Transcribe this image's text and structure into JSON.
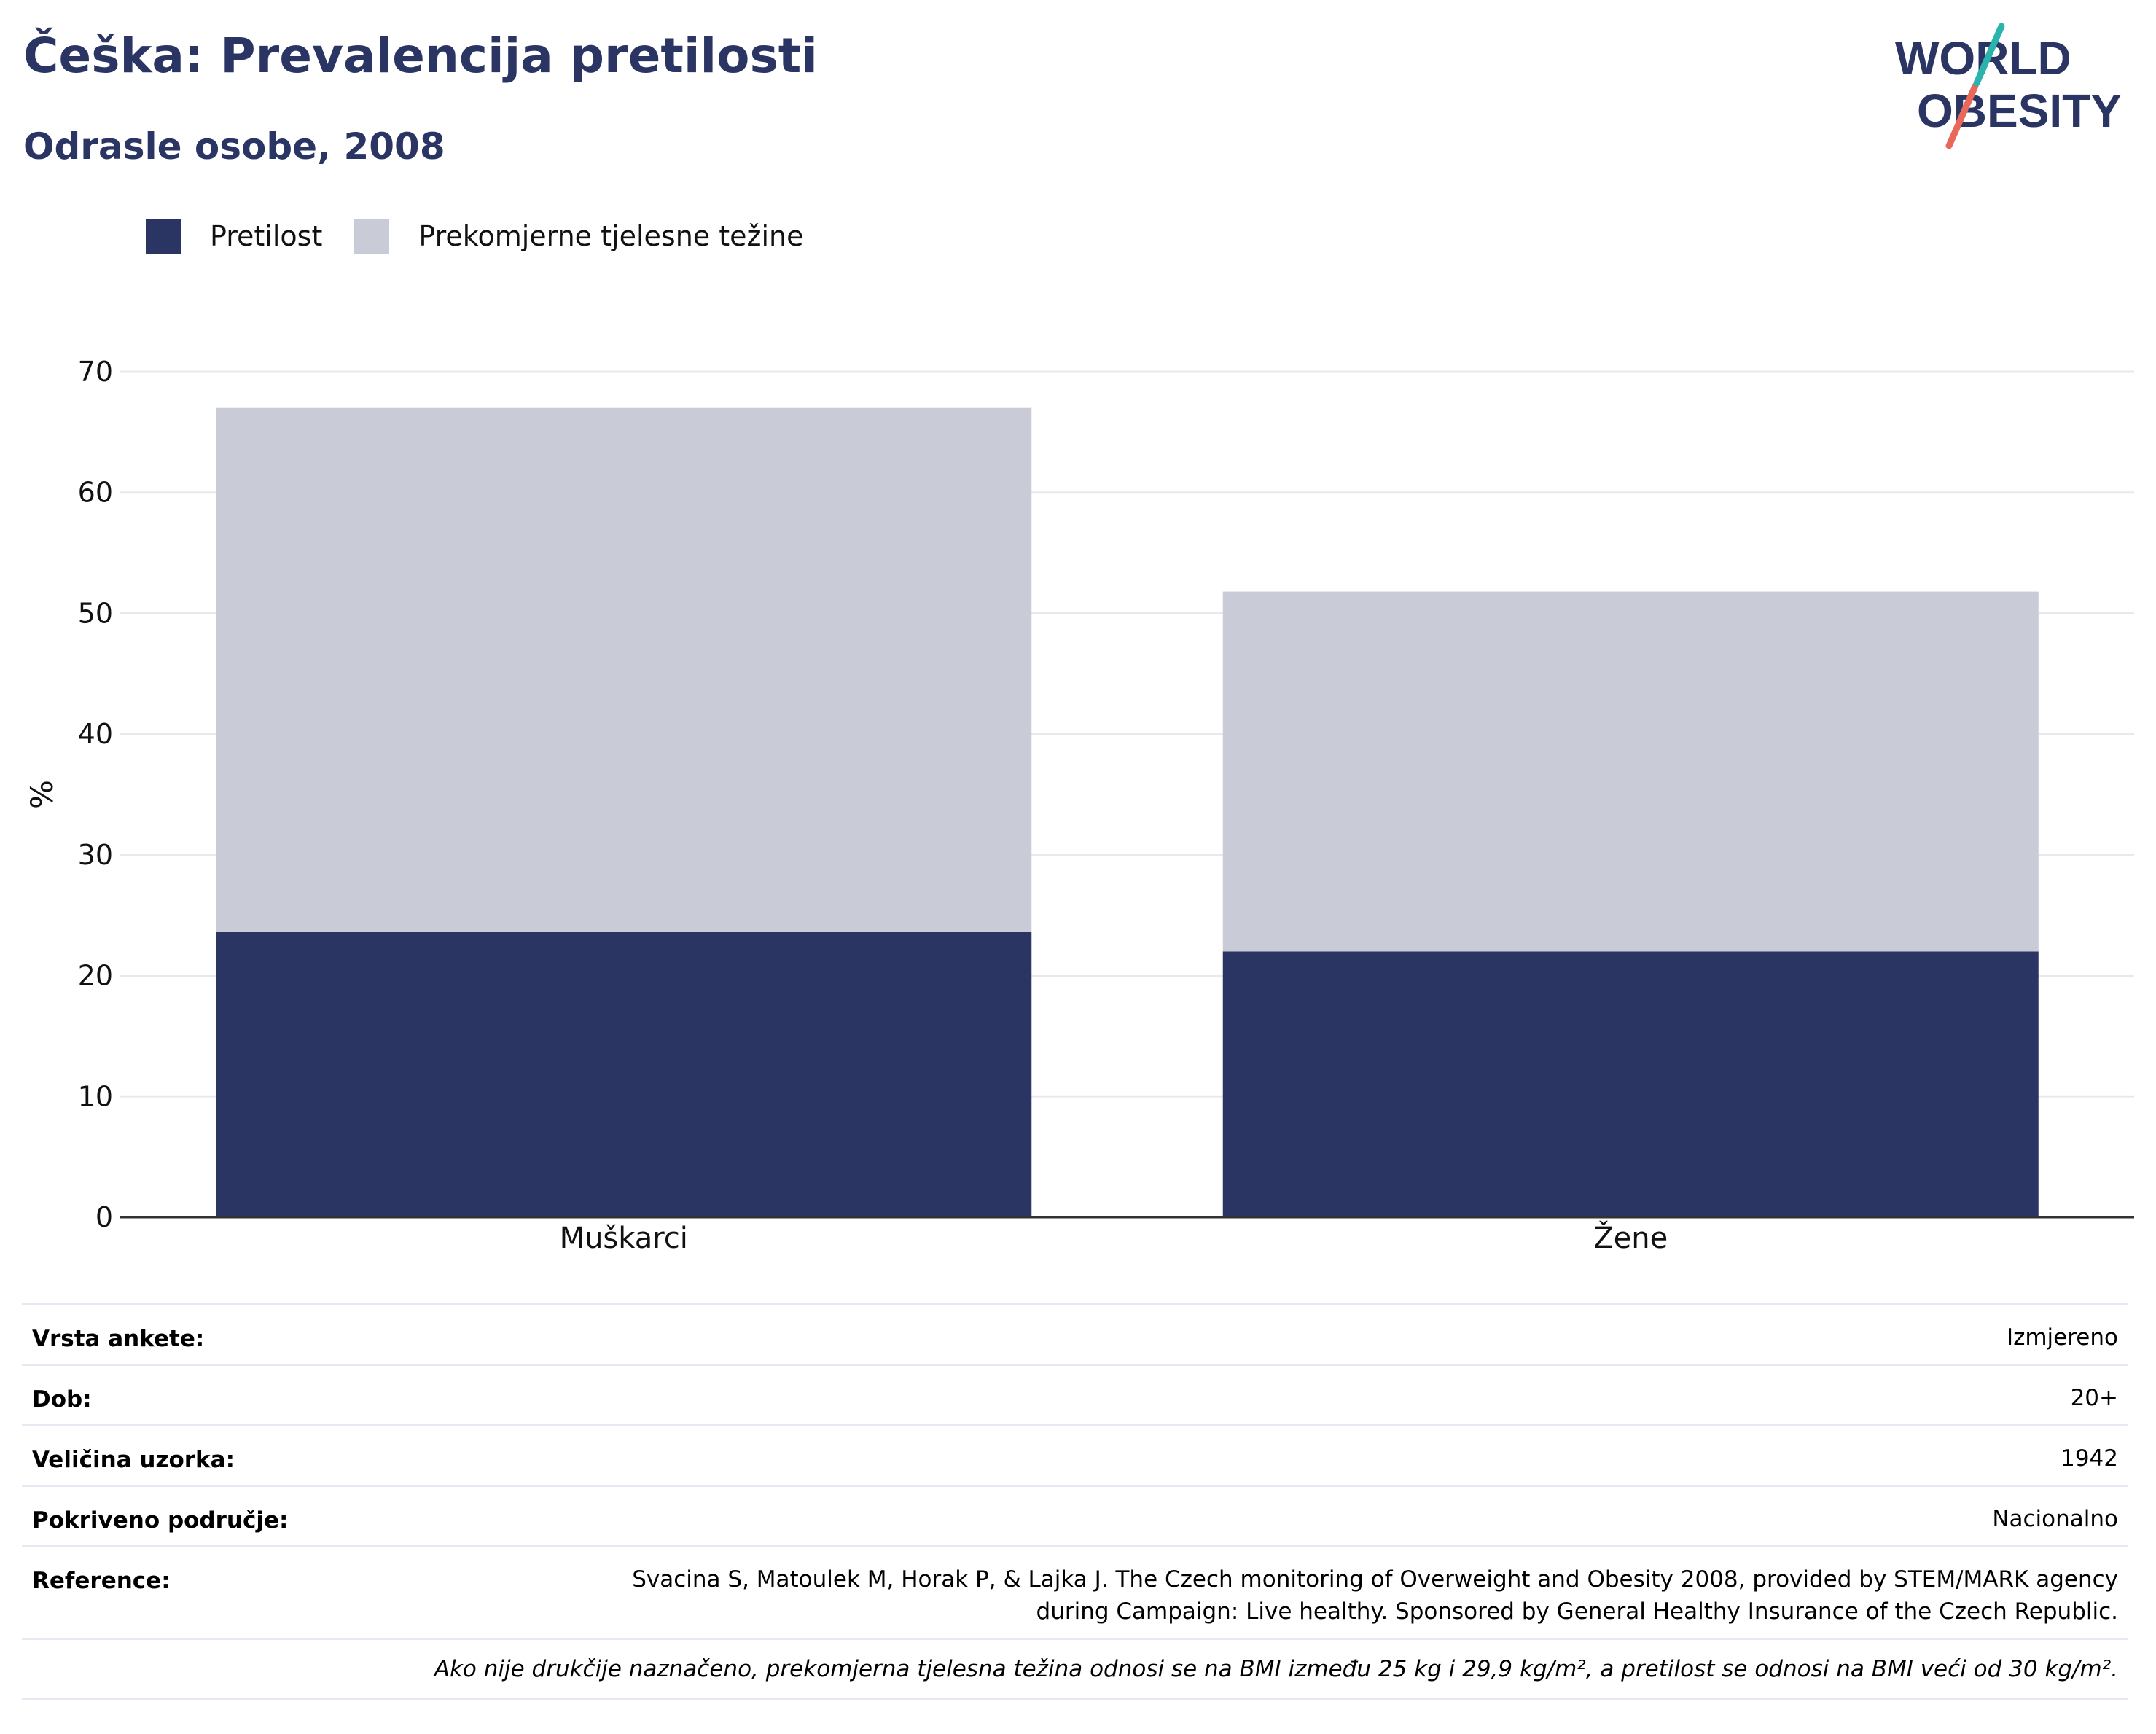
{
  "header": {
    "title": "Češka: Prevalencija pretilosti",
    "subtitle": "Odrasle osobe, 2008"
  },
  "logo": {
    "line1": "WORLD",
    "line2": "OBESITY",
    "colors": {
      "text": "#2a3564",
      "slash_top": "#2bb3ad",
      "slash_bottom": "#e8685a"
    }
  },
  "legend": [
    {
      "label": "Pretilost",
      "color": "#2a3564"
    },
    {
      "label": "Prekomjerne tjelesne težine",
      "color": "#c9ccd7"
    }
  ],
  "chart_data": {
    "type": "bar",
    "stacked": true,
    "categories": [
      "Muškarci",
      "Žene"
    ],
    "series": [
      {
        "name": "Pretilost",
        "values": [
          23.6,
          22.0
        ],
        "color": "#2a3564"
      },
      {
        "name": "Prekomjerne tjelesne težine",
        "values": [
          43.4,
          29.8
        ],
        "color": "#c9ccd7"
      }
    ],
    "ylabel": "%",
    "ylim": [
      0,
      70
    ],
    "yticks": [
      0,
      10,
      20,
      30,
      40,
      50,
      60,
      70
    ],
    "grid": true,
    "legend_position": "top-left"
  },
  "info": {
    "rows": [
      {
        "label": "Vrsta ankete:",
        "value": "Izmjereno"
      },
      {
        "label": "Dob:",
        "value": "20+"
      },
      {
        "label": "Veličina uzorka:",
        "value": "1942"
      },
      {
        "label": "Pokriveno područje:",
        "value": "Nacionalno"
      }
    ],
    "reference": {
      "label": "Reference:",
      "line1": "Svacina S, Matoulek M, Horak P, & Lajka J. The Czech monitoring of Overweight and Obesity 2008, provided by STEM/MARK agency",
      "line2": "during Campaign: Live healthy. Sponsored by General Healthy Insurance of the Czech Republic."
    },
    "note": "Ako nije drukčije naznačeno, prekomjerna tjelesna težina odnosi se na BMI između 25 kg i 29,9 kg/m², a pretilost se odnosi na BMI veći od 30 kg/m²."
  }
}
